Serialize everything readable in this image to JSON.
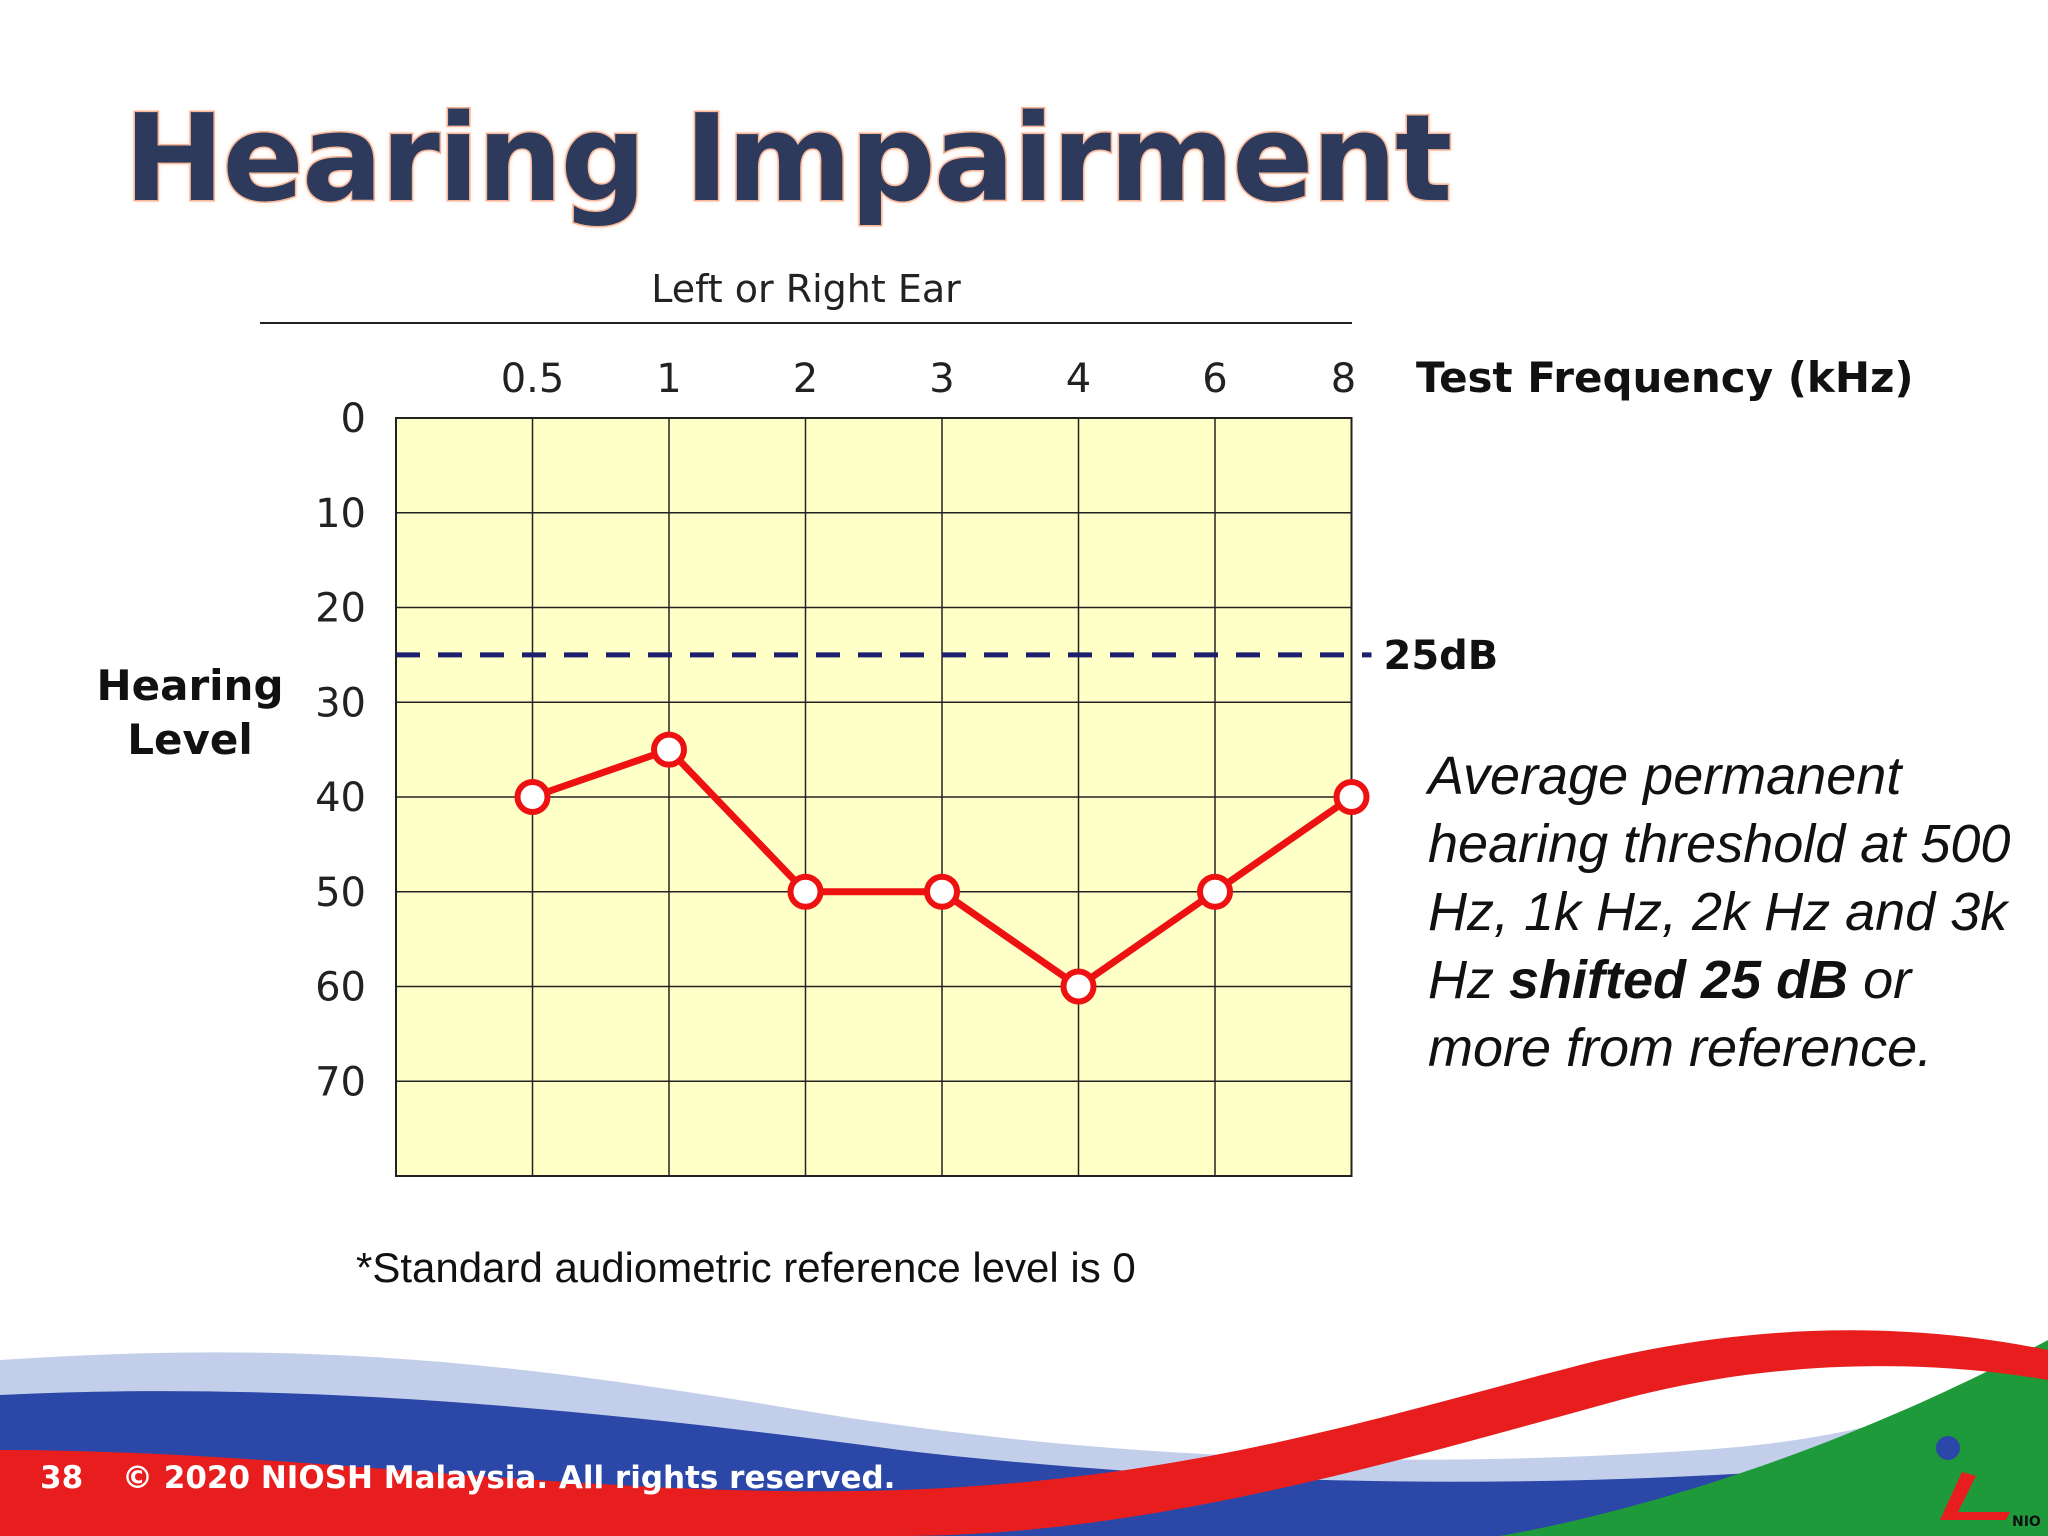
{
  "slide": {
    "title": "Hearing Impairment",
    "description": {
      "part1": "Average permanent hearing   threshold at 500 Hz, 1k Hz, 2k Hz and 3k Hz ",
      "bold": "shifted 25 dB",
      "part2": " or more from reference."
    },
    "footnote": "*Standard audiometric reference level is 0",
    "page_number": "38",
    "copyright": "© 2020 NIOSH Malaysia. All rights reserved.",
    "logo_text": "NIOSH"
  },
  "chart_data": {
    "type": "line",
    "title": "Left or Right Ear",
    "xlabel": "Test Frequency (kHz)",
    "ylabel_lines": [
      "Hearing",
      "Level"
    ],
    "categories": [
      "0.5",
      "1",
      "2",
      "3",
      "4",
      "6",
      "8"
    ],
    "yticks": [
      0,
      10,
      20,
      30,
      40,
      50,
      60,
      70
    ],
    "ylim": [
      0,
      80
    ],
    "y_inverted": true,
    "grid": true,
    "series": [
      {
        "values": [
          40,
          35,
          50,
          50,
          60,
          50,
          40
        ],
        "color": "#ee1111",
        "marker": "open-circle"
      }
    ],
    "reference_line": {
      "value": 25,
      "label": "25dB",
      "style": "dashed",
      "color": "#1b1f6e"
    },
    "background": "#ffffc8"
  }
}
